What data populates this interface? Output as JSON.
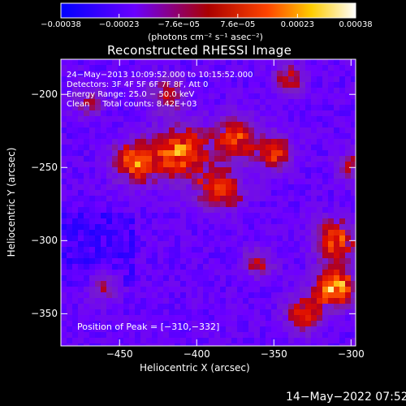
{
  "chart_data": {
    "type": "heatmap",
    "title": "Reconstructed RHESSI Image",
    "xlabel": "Heliocentric X (arcsec)",
    "ylabel": "Heliocentric Y (arcsec)",
    "xlim": [
      -488,
      -297
    ],
    "ylim": [
      -372,
      -176
    ],
    "x_ticks": [
      -450,
      -400,
      -350,
      -300
    ],
    "x_tick_labels": [
      "−450",
      "−400",
      "−350",
      "−300"
    ],
    "y_ticks": [
      -200,
      -250,
      -300,
      -350
    ],
    "y_tick_labels": [
      "−200",
      "−250",
      "−300",
      "−350"
    ],
    "colorbar": {
      "range": [
        -0.00038,
        0.00038
      ],
      "ticks": [
        -0.00038,
        -0.00023,
        -7.6e-05,
        7.6e-05,
        0.00023,
        0.00038
      ],
      "tick_labels": [
        "−0.00038",
        "−0.00023",
        "−7.6e−05",
        "7.6e−05",
        "0.00023",
        "0.00038"
      ],
      "units": "(photons cm⁻² s⁻¹ asec⁻²)",
      "colormap": [
        "#0000ff",
        "#7a00ff",
        "#cc0000",
        "#ff8800",
        "#ffff66",
        "#ffffff"
      ]
    },
    "info_lines": [
      "24−May−2013 10:09:52.000 to 10:15:52.000",
      "Detectors: 3F 4F 5F 6F 7F 8F, Att 0",
      "Energy Range: 25.0 − 50.0 keV",
      "Clean     Total counts: 8.42E+03"
    ],
    "peak_label": "Position of Peak = [−310,−332]",
    "peak": [
      -310,
      -332
    ],
    "grid": false
  },
  "footer": {
    "timestamp": "14−May−2022 07:52"
  }
}
